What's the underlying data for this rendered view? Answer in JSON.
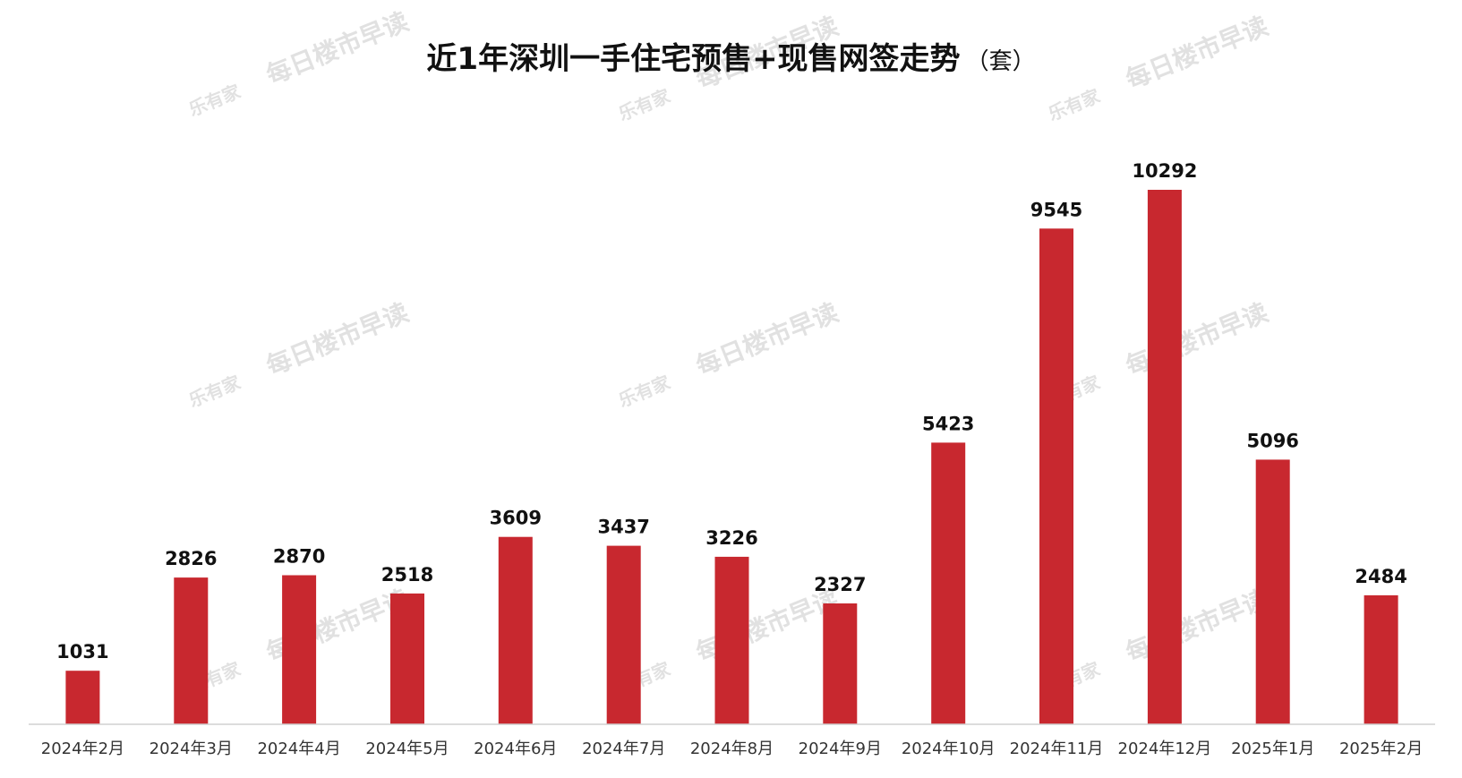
{
  "watermark": {
    "text": "每日楼市早读",
    "logo": "乐有家"
  },
  "chart_data": {
    "type": "bar",
    "title": "近1年深圳一手住宅预售+现售网签走势",
    "unit": "（套）",
    "categories": [
      "2024年2月",
      "2024年3月",
      "2024年4月",
      "2024年5月",
      "2024年6月",
      "2024年7月",
      "2024年8月",
      "2024年9月",
      "2024年10月",
      "2024年11月",
      "2024年12月",
      "2025年1月",
      "2025年2月"
    ],
    "values": [
      1031,
      2826,
      2870,
      2518,
      3609,
      3437,
      3226,
      2327,
      5423,
      9545,
      10292,
      5096,
      2484
    ],
    "ylim": [
      0,
      10292
    ],
    "grid": false,
    "legend": "none",
    "bar_color": "#c8282f",
    "axis_color": "#d0d0d0"
  }
}
